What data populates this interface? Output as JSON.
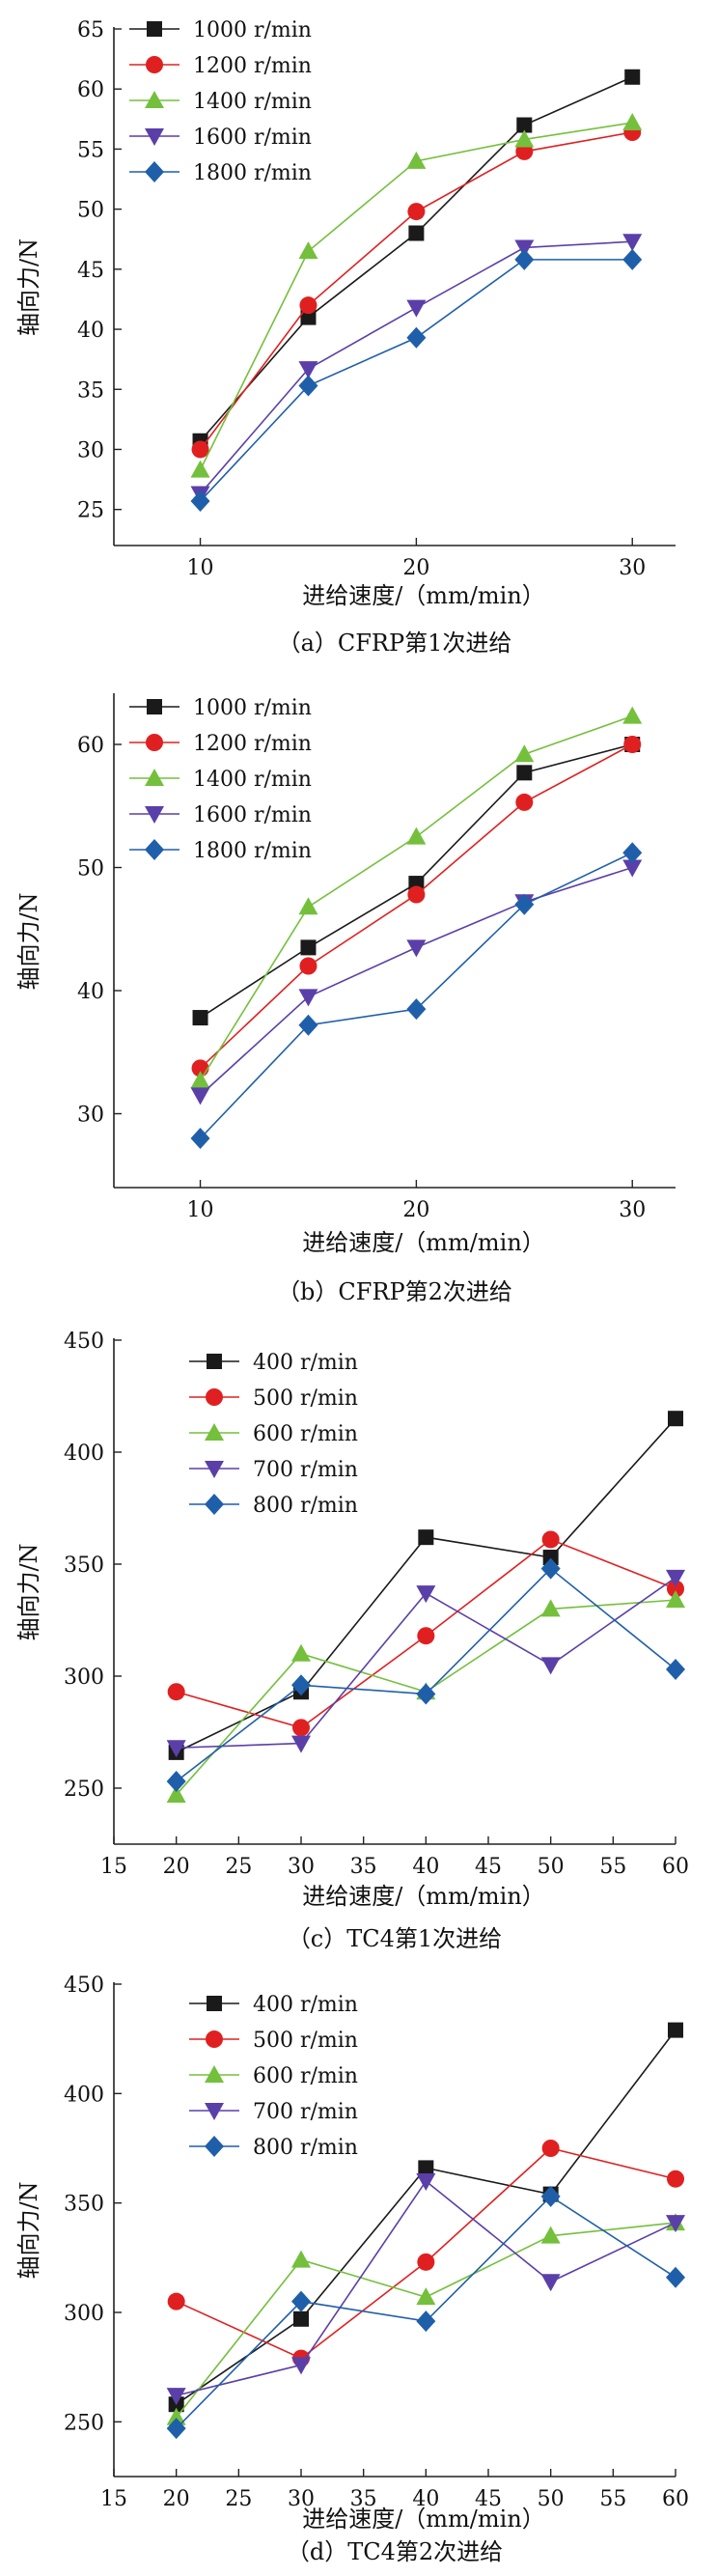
{
  "chart_data": [
    {
      "type": "line",
      "caption": "（a）CFRP第1次进给",
      "xlabel": "进给速度/（mm/min）",
      "ylabel": "轴向力/N",
      "xlim": [
        6,
        32
      ],
      "ylim": [
        22,
        65
      ],
      "xticks": [
        10,
        20,
        30
      ],
      "yticks": [
        25,
        30,
        35,
        40,
        45,
        50,
        55,
        60,
        65
      ],
      "x": [
        10,
        15,
        20,
        25,
        30
      ],
      "legend_position": "top-left",
      "grid": false,
      "series": [
        {
          "name": "1000 r/min",
          "color": "#1a1a1a",
          "marker": "square",
          "values": [
            30.7,
            41.0,
            48.0,
            57.0,
            61.0
          ]
        },
        {
          "name": "1200 r/min",
          "color": "#e02020",
          "marker": "circle",
          "values": [
            30.0,
            42.0,
            49.8,
            54.8,
            56.4
          ]
        },
        {
          "name": "1400 r/min",
          "color": "#74c03c",
          "marker": "triangle-up",
          "values": [
            28.3,
            46.5,
            54.0,
            55.8,
            57.2
          ]
        },
        {
          "name": "1600 r/min",
          "color": "#5b3fa8",
          "marker": "triangle-down",
          "values": [
            26.3,
            36.7,
            41.8,
            46.8,
            47.3
          ]
        },
        {
          "name": "1800 r/min",
          "color": "#1f5faa",
          "marker": "diamond",
          "values": [
            25.7,
            35.3,
            39.3,
            45.8,
            45.8
          ]
        }
      ]
    },
    {
      "type": "line",
      "caption": "（b）CFRP第2次进给",
      "xlabel": "进给速度/（mm/min）",
      "ylabel": "轴向力/N",
      "xlim": [
        6,
        32
      ],
      "ylim": [
        24,
        64
      ],
      "xticks": [
        10,
        20,
        30
      ],
      "yticks": [
        30,
        40,
        50,
        60
      ],
      "x": [
        10,
        15,
        20,
        25,
        30
      ],
      "legend_position": "top-left",
      "grid": false,
      "series": [
        {
          "name": "1000 r/min",
          "color": "#1a1a1a",
          "marker": "square",
          "values": [
            37.8,
            43.5,
            48.7,
            57.7,
            60.0
          ]
        },
        {
          "name": "1200 r/min",
          "color": "#e02020",
          "marker": "circle",
          "values": [
            33.7,
            42.0,
            47.8,
            55.3,
            60.0
          ]
        },
        {
          "name": "1400 r/min",
          "color": "#74c03c",
          "marker": "triangle-up",
          "values": [
            32.7,
            46.8,
            52.5,
            59.2,
            62.3
          ]
        },
        {
          "name": "1600 r/min",
          "color": "#5b3fa8",
          "marker": "triangle-down",
          "values": [
            31.5,
            39.5,
            43.5,
            47.2,
            50.0
          ]
        },
        {
          "name": "1800 r/min",
          "color": "#1f5faa",
          "marker": "diamond",
          "values": [
            28.0,
            37.2,
            38.5,
            47.0,
            51.2
          ]
        }
      ]
    },
    {
      "type": "line",
      "caption": "（c）TC4第1次进给",
      "xlabel": "进给速度/（mm/min）",
      "ylabel": "轴向力/N",
      "xlim": [
        15,
        60
      ],
      "ylim": [
        225,
        450
      ],
      "xticks": [
        15,
        20,
        25,
        30,
        35,
        40,
        45,
        50,
        55,
        60
      ],
      "yticks": [
        250,
        300,
        350,
        400,
        450
      ],
      "x": [
        20,
        30,
        40,
        50,
        60
      ],
      "legend_position": "top-left",
      "grid": false,
      "series": [
        {
          "name": "400 r/min",
          "color": "#1a1a1a",
          "marker": "square",
          "values": [
            266,
            293,
            362,
            353,
            415
          ]
        },
        {
          "name": "500 r/min",
          "color": "#e02020",
          "marker": "circle",
          "values": [
            293,
            277,
            318,
            361,
            339
          ]
        },
        {
          "name": "600 r/min",
          "color": "#74c03c",
          "marker": "triangle-up",
          "values": [
            247,
            310,
            293,
            330,
            334
          ]
        },
        {
          "name": "700 r/min",
          "color": "#5b3fa8",
          "marker": "triangle-down",
          "values": [
            268,
            270,
            337,
            305,
            344
          ]
        },
        {
          "name": "800 r/min",
          "color": "#1f5faa",
          "marker": "diamond",
          "values": [
            253,
            296,
            292,
            348,
            303
          ]
        }
      ]
    },
    {
      "type": "line",
      "caption": "（d）TC4第2次进给",
      "xlabel": "进给速度/（mm/min）",
      "ylabel": "轴向力/N",
      "xlim": [
        15,
        60
      ],
      "ylim": [
        225,
        450
      ],
      "xticks": [
        15,
        20,
        25,
        30,
        35,
        40,
        45,
        50,
        55,
        60
      ],
      "yticks": [
        250,
        300,
        350,
        400,
        450
      ],
      "x": [
        20,
        30,
        40,
        50,
        60
      ],
      "legend_position": "top-left",
      "grid": false,
      "series": [
        {
          "name": "400 r/min",
          "color": "#1a1a1a",
          "marker": "square",
          "values": [
            258,
            297,
            366,
            354,
            429
          ]
        },
        {
          "name": "500 r/min",
          "color": "#e02020",
          "marker": "circle",
          "values": [
            305,
            279,
            323,
            375,
            361
          ]
        },
        {
          "name": "600 r/min",
          "color": "#74c03c",
          "marker": "triangle-up",
          "values": [
            252,
            324,
            307,
            335,
            341
          ]
        },
        {
          "name": "700 r/min",
          "color": "#5b3fa8",
          "marker": "triangle-down",
          "values": [
            262,
            276,
            360,
            314,
            341
          ]
        },
        {
          "name": "800 r/min",
          "color": "#1f5faa",
          "marker": "diamond",
          "values": [
            247,
            305,
            296,
            353,
            316
          ]
        }
      ]
    }
  ]
}
